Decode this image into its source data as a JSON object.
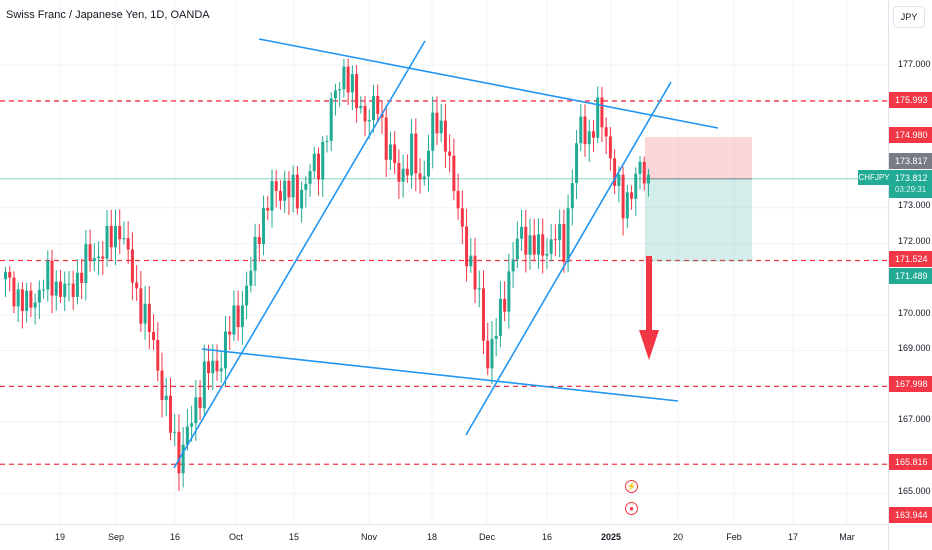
{
  "header": {
    "title": "Swiss Franc / Japanese Yen, 1D, OANDA",
    "currency_button": "JPY"
  },
  "price_axis": {
    "labels": [
      "177.000",
      "173.000",
      "172.000",
      "170.000",
      "169.000",
      "167.000",
      "165.000"
    ],
    "tags": [
      {
        "id": "res-top",
        "text": "175.993",
        "color": "#f23645"
      },
      {
        "id": "target-top",
        "text": "174.980",
        "color": "#f23645"
      },
      {
        "id": "prev-close",
        "text": "173.817",
        "color": "#787b86"
      },
      {
        "id": "res-mid",
        "text": "171.524",
        "color": "#f23645"
      },
      {
        "id": "stop-bottom",
        "text": "171.489",
        "color": "#22ab94"
      },
      {
        "id": "sup-mid",
        "text": "167.998",
        "color": "#f23645"
      },
      {
        "id": "sup-low",
        "text": "165.816",
        "color": "#f23645"
      },
      {
        "id": "axis-bottom",
        "text": "163.944",
        "color": "#f23645"
      }
    ],
    "live": {
      "symbol": "CHFJPY",
      "price": "173.812",
      "countdown": "03:29:31"
    }
  },
  "time_axis": {
    "labels": [
      "19",
      "Sep",
      "16",
      "Oct",
      "15",
      "Nov",
      "18",
      "Dec",
      "16",
      "2025",
      "20",
      "Feb",
      "17",
      "Mar"
    ]
  },
  "events": {
    "flash_icon": "⚡",
    "record_icon": "●"
  },
  "chart_data": {
    "type": "candlestick",
    "symbol": "CHFJPY",
    "interval": "1D",
    "exchange": "OANDA",
    "ylim": [
      164.2,
      178.1
    ],
    "horizontal_levels": [
      175.993,
      171.524,
      167.998,
      165.816
    ],
    "colors": {
      "up": "#22ab94",
      "down": "#f23645",
      "trendline": "#2196f3",
      "level": "#f23645"
    },
    "position": {
      "type": "short",
      "entry": 173.812,
      "stop": 174.98,
      "target": 171.489
    }
  }
}
